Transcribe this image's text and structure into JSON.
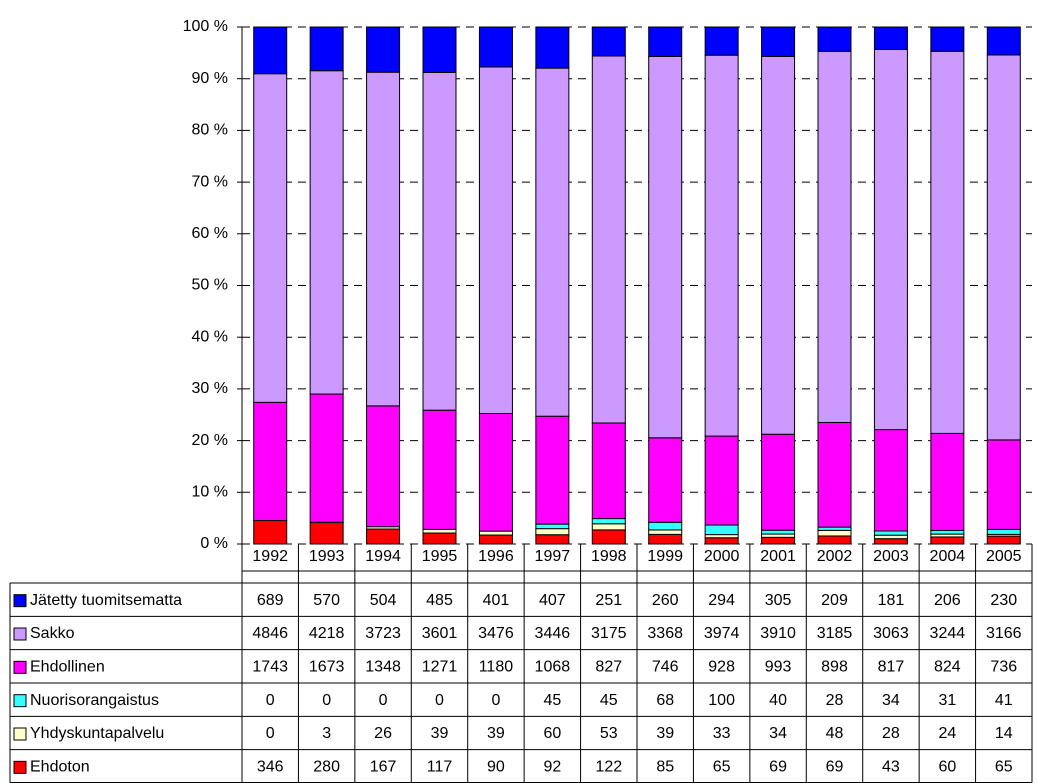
{
  "chart_data": {
    "type": "stacked_percent_bar",
    "categories": [
      "1992",
      "1993",
      "1994",
      "1995",
      "1996",
      "1997",
      "1998",
      "1999",
      "2000",
      "2001",
      "2002",
      "2003",
      "2004",
      "2005"
    ],
    "series": [
      {
        "name": "Ehdoton",
        "color": "#ff0000",
        "values": [
          346,
          280,
          167,
          117,
          90,
          92,
          122,
          85,
          65,
          69,
          69,
          43,
          60,
          65
        ]
      },
      {
        "name": "Yhdyskuntapalvelu",
        "color": "#ffffcc",
        "values": [
          0,
          3,
          26,
          39,
          39,
          60,
          53,
          39,
          33,
          34,
          48,
          28,
          24,
          14
        ]
      },
      {
        "name": "Nuorisorangaistus",
        "color": "#33ffff",
        "values": [
          0,
          0,
          0,
          0,
          0,
          45,
          45,
          68,
          100,
          40,
          28,
          34,
          31,
          41
        ]
      },
      {
        "name": "Ehdollinen",
        "color": "#ff00ff",
        "values": [
          1743,
          1673,
          1348,
          1271,
          1180,
          1068,
          827,
          746,
          928,
          993,
          898,
          817,
          824,
          736
        ]
      },
      {
        "name": "Sakko",
        "color": "#cc99ff",
        "values": [
          4846,
          4218,
          3723,
          3601,
          3476,
          3446,
          3175,
          3368,
          3974,
          3910,
          3185,
          3063,
          3244,
          3166
        ]
      },
      {
        "name": "Jätetty tuomitsematta",
        "color": "#0000ff",
        "values": [
          689,
          570,
          504,
          485,
          401,
          407,
          251,
          260,
          294,
          305,
          209,
          181,
          206,
          230
        ]
      }
    ],
    "ylim": [
      0,
      100
    ],
    "yticks": [
      {
        "value": 0,
        "label": "0 %"
      },
      {
        "value": 10,
        "label": "10 %"
      },
      {
        "value": 20,
        "label": "20 %"
      },
      {
        "value": 30,
        "label": "30 %"
      },
      {
        "value": 40,
        "label": "40 %"
      },
      {
        "value": 50,
        "label": "50 %"
      },
      {
        "value": 60,
        "label": "60 %"
      },
      {
        "value": 70,
        "label": "70 %"
      },
      {
        "value": 80,
        "label": "80 %"
      },
      {
        "value": 90,
        "label": "90 %"
      },
      {
        "value": 100,
        "label": "100 %"
      }
    ],
    "grid": true
  }
}
